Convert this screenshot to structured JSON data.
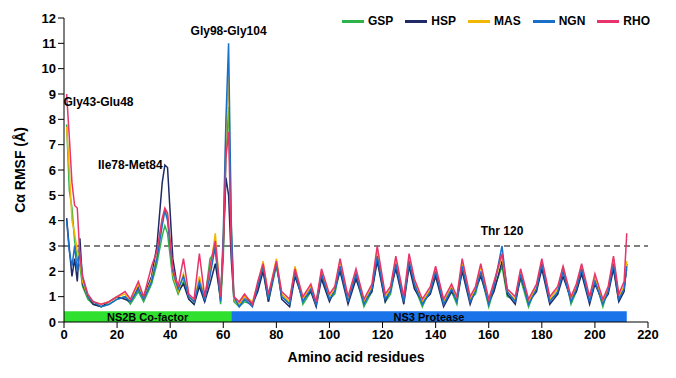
{
  "chart_data": {
    "type": "line",
    "x": [
      1,
      2,
      3,
      4,
      5,
      6,
      7,
      9,
      11,
      14,
      17,
      20,
      23,
      25,
      28,
      30,
      33,
      35,
      37,
      38,
      39,
      41,
      43,
      45,
      47,
      49,
      51,
      53,
      55,
      57,
      59,
      60,
      61,
      62,
      63,
      64,
      66,
      68,
      71,
      73,
      75,
      77,
      80,
      82,
      85,
      87,
      90,
      93,
      95,
      97,
      100,
      102,
      104,
      107,
      110,
      113,
      116,
      118,
      121,
      123,
      125,
      128,
      130,
      132,
      135,
      138,
      140,
      143,
      146,
      148,
      150,
      153,
      155,
      157,
      160,
      162,
      165,
      167,
      170,
      172,
      175,
      178,
      180,
      183,
      186,
      188,
      191,
      193,
      195,
      198,
      200,
      203,
      205,
      207,
      209,
      211,
      212
    ],
    "series": [
      {
        "name": "GSP",
        "color": "#2db34a",
        "values": [
          7.8,
          5.2,
          4.5,
          3.2,
          2.5,
          2.2,
          1.4,
          0.9,
          0.7,
          0.6,
          0.7,
          0.9,
          1.0,
          0.7,
          1.2,
          0.8,
          1.5,
          2.3,
          3.4,
          3.8,
          3.5,
          1.7,
          1.1,
          1.6,
          0.9,
          0.7,
          1.5,
          0.8,
          2.5,
          2.8,
          0.7,
          2.5,
          6.5,
          8.5,
          3.5,
          0.8,
          0.6,
          0.8,
          0.7,
          1.3,
          2.1,
          0.8,
          2.2,
          1.1,
          0.7,
          2.1,
          0.7,
          1.2,
          0.8,
          1.8,
          0.9,
          1.1,
          2.1,
          0.9,
          1.8,
          0.6,
          1.2,
          2.5,
          0.8,
          1.1,
          2.2,
          0.9,
          2.3,
          1.4,
          0.6,
          1.3,
          1.9,
          0.8,
          1.2,
          0.7,
          2.1,
          0.9,
          1.1,
          1.9,
          0.6,
          1.3,
          2.2,
          1.0,
          0.9,
          1.7,
          0.6,
          1.4,
          2.2,
          0.9,
          1.1,
          2.2,
          0.7,
          1.2,
          2.0,
          0.9,
          1.7,
          0.6,
          1.3,
          2.2,
          0.8,
          1.4,
          2.1
        ]
      },
      {
        "name": "HSP",
        "color": "#1f2a66",
        "values": [
          4.1,
          2.9,
          1.8,
          2.5,
          1.6,
          3.3,
          1.5,
          1.0,
          0.7,
          0.6,
          0.8,
          1.0,
          0.9,
          0.8,
          1.4,
          1.0,
          1.8,
          3.0,
          5.5,
          6.2,
          6.1,
          2.5,
          1.2,
          1.5,
          0.9,
          0.7,
          1.4,
          0.8,
          1.5,
          2.3,
          0.9,
          3.0,
          5.7,
          5.0,
          2.5,
          0.9,
          0.7,
          1.0,
          0.7,
          1.2,
          2.0,
          0.8,
          2.4,
          0.9,
          0.6,
          1.8,
          0.9,
          1.2,
          0.6,
          1.7,
          0.8,
          1.3,
          2.0,
          0.7,
          1.7,
          0.8,
          1.2,
          2.4,
          0.8,
          1.3,
          2.1,
          0.7,
          2.2,
          1.3,
          0.8,
          1.1,
          1.8,
          0.6,
          1.2,
          0.9,
          2.0,
          0.7,
          1.3,
          1.8,
          0.8,
          1.2,
          2.4,
          1.1,
          0.7,
          1.8,
          0.8,
          1.2,
          2.1,
          0.7,
          1.1,
          1.8,
          0.9,
          1.2,
          1.9,
          0.7,
          1.5,
          0.8,
          1.1,
          2.1,
          0.8,
          1.2,
          2.3
        ]
      },
      {
        "name": "MAS",
        "color": "#f2b705",
        "values": [
          7.7,
          6.0,
          4.0,
          3.5,
          2.8,
          2.5,
          1.6,
          1.0,
          0.8,
          0.7,
          0.8,
          1.0,
          1.1,
          0.8,
          1.5,
          0.9,
          1.7,
          2.6,
          4.0,
          4.4,
          4.2,
          1.9,
          1.2,
          1.9,
          1.0,
          0.8,
          1.8,
          0.9,
          2.0,
          3.5,
          0.9,
          3.2,
          7.5,
          9.7,
          3.8,
          0.9,
          0.7,
          1.0,
          0.8,
          1.5,
          2.4,
          1.0,
          2.5,
          1.1,
          0.8,
          2.2,
          0.9,
          1.4,
          0.7,
          2.0,
          1.0,
          1.3,
          2.4,
          0.9,
          2.0,
          0.8,
          1.4,
          2.8,
          1.0,
          1.3,
          2.5,
          0.9,
          2.5,
          1.6,
          0.8,
          1.3,
          2.1,
          0.8,
          1.4,
          0.9,
          2.4,
          0.9,
          1.3,
          2.2,
          0.8,
          1.5,
          2.6,
          1.2,
          0.9,
          2.0,
          0.8,
          1.4,
          2.4,
          0.9,
          1.3,
          2.1,
          0.9,
          1.4,
          2.2,
          0.9,
          1.8,
          0.8,
          1.3,
          2.5,
          1.0,
          1.4,
          2.4
        ]
      },
      {
        "name": "NGN",
        "color": "#1a6fc9",
        "values": [
          4.0,
          2.8,
          2.2,
          3.0,
          2.0,
          2.8,
          1.8,
          1.0,
          0.8,
          0.6,
          0.7,
          0.9,
          1.0,
          0.8,
          1.3,
          0.9,
          1.6,
          2.5,
          3.8,
          4.4,
          4.0,
          2.0,
          1.3,
          1.8,
          1.0,
          0.8,
          1.6,
          0.9,
          1.8,
          3.0,
          0.8,
          3.5,
          8.0,
          11.0,
          4.0,
          1.0,
          0.6,
          0.9,
          0.6,
          1.4,
          2.2,
          0.9,
          2.3,
          1.0,
          0.7,
          2.0,
          0.8,
          1.3,
          0.7,
          1.9,
          0.9,
          1.2,
          2.2,
          0.8,
          1.9,
          0.7,
          1.3,
          2.6,
          0.9,
          1.2,
          2.3,
          0.8,
          2.4,
          1.5,
          0.7,
          1.2,
          2.0,
          0.7,
          1.3,
          0.8,
          2.2,
          0.8,
          1.2,
          2.0,
          0.7,
          1.4,
          3.0,
          1.2,
          0.8,
          1.9,
          0.7,
          1.3,
          2.3,
          0.8,
          1.2,
          2.0,
          0.8,
          1.3,
          2.1,
          0.8,
          1.6,
          0.7,
          1.2,
          2.3,
          0.9,
          1.3,
          2.2
        ]
      },
      {
        "name": "RHO",
        "color": "#e8336b",
        "values": [
          9.0,
          7.3,
          5.5,
          4.6,
          4.5,
          2.6,
          1.8,
          1.1,
          0.8,
          0.7,
          0.8,
          1.0,
          1.2,
          0.9,
          1.6,
          1.0,
          2.2,
          2.8,
          4.1,
          4.5,
          4.3,
          2.1,
          1.4,
          2.5,
          1.1,
          0.9,
          2.7,
          1.0,
          2.2,
          3.2,
          1.0,
          3.0,
          6.5,
          7.5,
          3.0,
          1.0,
          0.8,
          1.1,
          0.7,
          1.6,
          2.3,
          1.1,
          2.4,
          1.2,
          0.9,
          2.1,
          1.0,
          1.5,
          0.8,
          2.1,
          1.1,
          1.4,
          2.5,
          1.0,
          2.1,
          0.9,
          1.5,
          3.0,
          1.1,
          1.4,
          2.6,
          1.0,
          2.7,
          1.7,
          0.9,
          1.4,
          2.2,
          0.9,
          1.5,
          1.0,
          2.5,
          1.0,
          1.4,
          2.3,
          0.9,
          1.6,
          2.7,
          1.3,
          1.0,
          2.1,
          0.9,
          1.5,
          2.5,
          1.0,
          1.4,
          2.2,
          1.0,
          1.5,
          2.3,
          1.0,
          1.9,
          0.9,
          1.4,
          2.6,
          1.1,
          1.6,
          3.5
        ]
      }
    ],
    "xlim": [
      0,
      220
    ],
    "xticks": [
      0,
      20,
      40,
      60,
      80,
      100,
      120,
      140,
      160,
      180,
      200,
      220
    ],
    "ylim": [
      0,
      12
    ],
    "yticks": [
      0,
      1,
      2,
      3,
      4,
      5,
      6,
      7,
      8,
      9,
      10,
      11,
      12
    ],
    "x_label": "Amino acid residues",
    "y_label": "Cα RMSF (Å)",
    "legend": "upper right",
    "grid": false,
    "threshold": 3,
    "annotations": [
      "Gly43-Glu48",
      "Ile78-Met84",
      "Gly98-Gly104",
      "Thr 120"
    ],
    "domains": [
      {
        "label": "NS2B Co-factor",
        "start": 0,
        "end": 63,
        "color": "#2fe02f"
      },
      {
        "label": "NS3 Protease",
        "start": 63,
        "end": 212,
        "color": "#1a73e8"
      }
    ]
  }
}
